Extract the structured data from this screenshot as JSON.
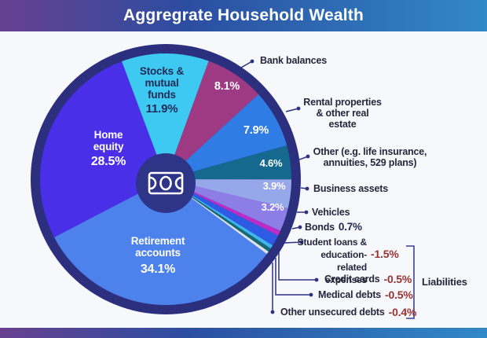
{
  "header": {
    "title": "Aggregrate Household Wealth"
  },
  "chart_data": {
    "type": "pie",
    "title": "Aggregrate Household Wealth",
    "start_angle_deg": -20.5,
    "legend_position": "right-callouts",
    "group_label": "Liabilities",
    "liabilities_keys": [
      "student",
      "credit",
      "medical",
      "unsecured"
    ],
    "segments": [
      {
        "key": "stocks",
        "label": "Stocks & mutual funds",
        "label_lines": [
          "Stocks &",
          "mutual",
          "funds"
        ],
        "value": 11.9,
        "display": "11.9%",
        "color": "#3ec9f2"
      },
      {
        "key": "bank",
        "label": "Bank balances",
        "value": 8.1,
        "display": "8.1%",
        "color": "#9e3a84"
      },
      {
        "key": "rental",
        "label": "Rental properties & other real estate",
        "label_lines": [
          "Rental properties",
          "& other real estate"
        ],
        "value": 7.9,
        "display": "7.9%",
        "color": "#2e7ce4"
      },
      {
        "key": "other",
        "label": "Other (e.g. life insurance, annuities, 529 plans)",
        "label_lines": [
          "Other (e.g. life insurance,",
          "annuities, 529 plans)"
        ],
        "value": 4.6,
        "display": "4.6%",
        "color": "#15698e"
      },
      {
        "key": "business",
        "label": "Business assets",
        "value": 3.9,
        "display": "3.9%",
        "color": "#97a8ea"
      },
      {
        "key": "vehicles",
        "label": "Vehicles",
        "value": 3.2,
        "display": "3.2%",
        "color": "#8d7de6"
      },
      {
        "key": "bonds",
        "label": "Bonds",
        "value": 0.7,
        "display": "0.7%",
        "color": "#bb2dc4"
      },
      {
        "key": "student",
        "label": "Student loans & education-related expenses",
        "label_lines": [
          "Student loans &",
          "education-related",
          "expenses"
        ],
        "value": -1.5,
        "display": "-1.5%",
        "color": "#2e5be4"
      },
      {
        "key": "credit",
        "label": "Credit cards",
        "value": -0.5,
        "display": "-0.5%",
        "color": "#3fb4ee"
      },
      {
        "key": "medical",
        "label": "Medical debts",
        "value": -0.5,
        "display": "-0.5%",
        "color": "#166a74"
      },
      {
        "key": "unsecured",
        "label": "Other unsecured debts",
        "value": -0.4,
        "display": "-0.4%",
        "color": "#dfe3ee"
      },
      {
        "key": "retirement",
        "label": "Retirement accounts",
        "label_lines": [
          "Retirement",
          "accounts"
        ],
        "value": 34.1,
        "display": "34.1%",
        "color": "#4d82ec"
      },
      {
        "key": "home",
        "label": "Home equity",
        "label_lines": [
          "Home",
          "equity"
        ],
        "value": 28.5,
        "display": "28.5%",
        "color": "#4a2fe8"
      }
    ],
    "icons": {
      "center": "banknote-icon"
    },
    "colors": {
      "ring": "#2c2f7d",
      "hub": "#2e3488",
      "leader": "#2d3184",
      "negative_text": "#9a3231",
      "label_text": "#26263c"
    }
  }
}
